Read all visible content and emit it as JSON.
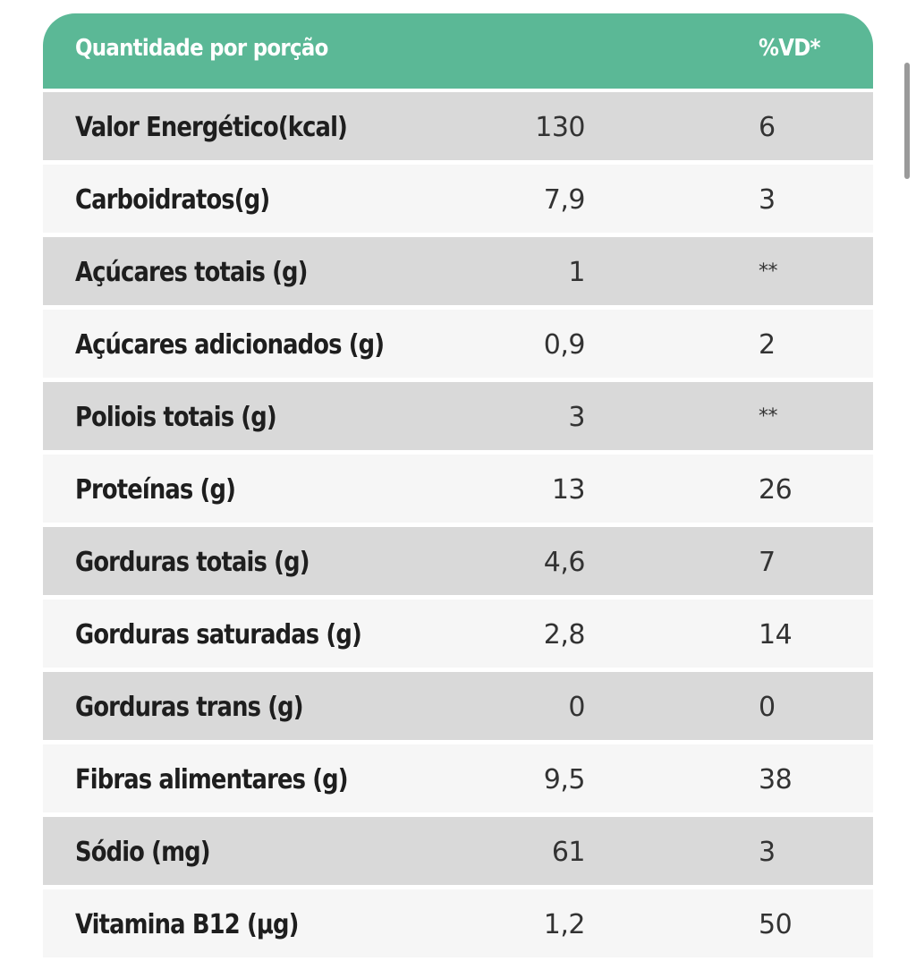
{
  "table": {
    "header": {
      "amount_label": "Quantidade por porção",
      "dv_label": "%VD*"
    },
    "rows": [
      {
        "label": "Valor Energético(kcal)",
        "qty": "130",
        "dv": "6"
      },
      {
        "label": "Carboidratos(g)",
        "qty": "7,9",
        "dv": "3"
      },
      {
        "label": "Açúcares totais (g)",
        "qty": "1",
        "dv": "**"
      },
      {
        "label": "Açúcares adicionados (g)",
        "qty": "0,9",
        "dv": "2"
      },
      {
        "label": "Poliois totais (g)",
        "qty": "3",
        "dv": "**"
      },
      {
        "label": "Proteínas (g)",
        "qty": "13",
        "dv": "26"
      },
      {
        "label": "Gorduras totais (g)",
        "qty": "4,6",
        "dv": "7"
      },
      {
        "label": "Gorduras saturadas (g)",
        "qty": "2,8",
        "dv": "14"
      },
      {
        "label": "Gorduras trans (g)",
        "qty": "0",
        "dv": "0"
      },
      {
        "label": "Fibras alimentares (g)",
        "qty": "9,5",
        "dv": "38"
      },
      {
        "label": "Sódio (mg)",
        "qty": "61",
        "dv": "3"
      },
      {
        "label": "Vitamina B12 (µg)",
        "qty": "1,2",
        "dv": "50"
      }
    ]
  },
  "colors": {
    "header_bg": "#5bb896",
    "row_shaded": "#d9d9d9",
    "row_plain": "#f6f6f6"
  }
}
